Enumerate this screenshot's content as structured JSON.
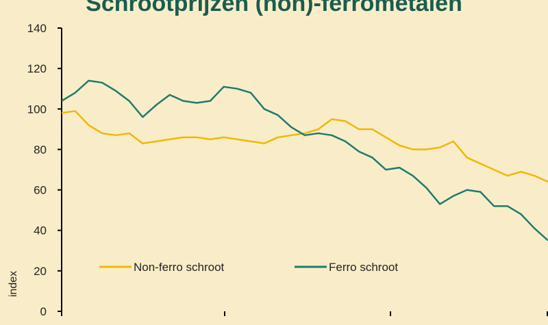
{
  "chart_data": {
    "type": "line",
    "title": "Schrootprijzen (non)-ferrometalen",
    "y_label": "index",
    "categories": [
      null,
      null,
      null,
      null,
      null,
      null,
      null,
      null,
      null,
      null,
      null,
      null,
      null,
      null,
      null,
      null,
      null,
      null,
      null,
      null,
      null,
      null,
      null,
      null,
      null,
      null,
      null,
      null,
      null,
      null,
      null,
      null,
      null,
      null,
      null,
      null,
      null
    ],
    "series": [
      {
        "name": "Non-ferro schroot",
        "color": "#f2b705",
        "values": [
          98,
          99,
          92,
          88,
          87,
          88,
          83,
          84,
          85,
          86,
          86,
          85,
          86,
          85,
          84,
          83,
          86,
          87,
          88,
          90,
          95,
          94,
          90,
          90,
          86,
          82,
          80,
          80,
          81,
          84,
          76,
          73,
          70,
          67,
          69,
          67,
          64
        ]
      },
      {
        "name": "Ferro schroot",
        "color": "#1f7a6e",
        "values": [
          104,
          108,
          114,
          113,
          109,
          104,
          96,
          102,
          107,
          104,
          103,
          104,
          111,
          110,
          108,
          100,
          97,
          91,
          87,
          88,
          87,
          84,
          79,
          76,
          70,
          71,
          67,
          61,
          53,
          57,
          60,
          59,
          52,
          52,
          48,
          41,
          35
        ]
      }
    ],
    "ylim": [
      0,
      140
    ],
    "yticks": [
      0,
      20,
      40,
      60,
      80,
      100,
      120,
      140
    ],
    "grid": false
  }
}
